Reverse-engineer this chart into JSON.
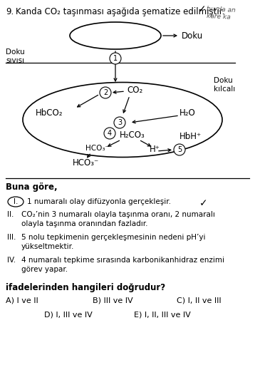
{
  "title_num": "9.",
  "title_text": "Kanda CO₂ taşınması aşağıda şematize edilmiştir.",
  "handwritten1": "burda an",
  "handwritten2": "kare ka",
  "doku_label": "Doku",
  "doku_sivisi_label": "Doku\nsıvısı",
  "doku_kilcali_label": "Doku\nkılcalı",
  "labels": {
    "CO2": "CO₂",
    "HbCO2": "HbCO₂",
    "H2O": "H₂O",
    "H2CO3": "H₂CO₃",
    "HCO3_inner": "HCO₃⁻",
    "HCO3_outer": "HCO₃⁻",
    "H_plus": "H⁺",
    "HbH_plus": "HbH⁺"
  },
  "buna_gore": "Buna göre,",
  "items": [
    "1 numaralı olay difüzyonla gerçekleşir.",
    "CO₂’nin 3 numaralı olayla taşınma oranı, 2 numaralı\nolayla taşınma oranından fazladır.",
    "5 nolu tepkimenin gerçekleşmesinin nedeni pH’yi\nyükseltmektir.",
    "4 numaralı tepkime sırasında karbonikanhidraz enzimi\ngörev yapar."
  ],
  "item_nums": [
    "I.",
    "II.",
    "III.",
    "IV."
  ],
  "question_text": "ifadelerinden hangileri doğrudur?",
  "answers": {
    "A": "A) I ve II",
    "B": "B) III ve IV",
    "C": "C) I, II ve III",
    "D": "D) I, III ve IV",
    "E": "E) I, II, III ve IV"
  },
  "bg_color": "#ffffff",
  "text_color": "#000000"
}
